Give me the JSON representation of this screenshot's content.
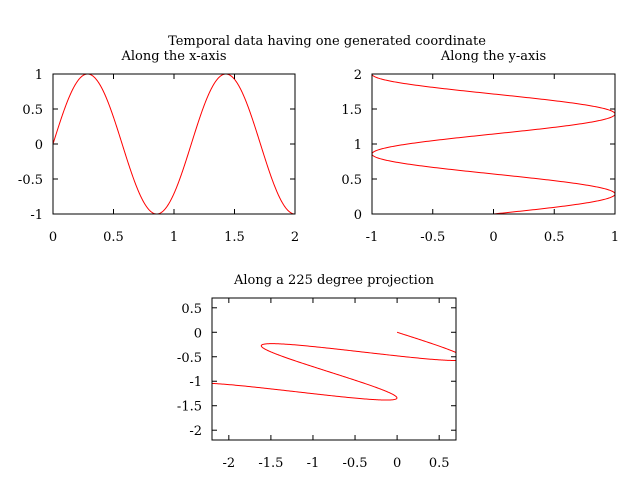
{
  "figure": {
    "title": "Temporal data having one generated coordinate"
  },
  "chart_data": [
    {
      "type": "line",
      "title": "Along the x-axis",
      "xlabel": "",
      "ylabel": "",
      "xlim": [
        0,
        2
      ],
      "ylim": [
        -1,
        1
      ],
      "xticks": [
        0,
        0.5,
        1,
        1.5,
        2
      ],
      "xtick_labels": [
        "0",
        "0.5",
        "1",
        "1.5",
        "2"
      ],
      "yticks": [
        -1,
        -0.5,
        0,
        0.5,
        1
      ],
      "ytick_labels": [
        "-1",
        "-0.5",
        "0",
        "0.5",
        "1"
      ],
      "grid": false,
      "series": [
        {
          "color": "#ff0000",
          "function": "y = sin(1.75*pi*t), x = t",
          "t_range": [
            0,
            2
          ]
        }
      ]
    },
    {
      "type": "line",
      "title": "Along the y-axis",
      "xlabel": "",
      "ylabel": "",
      "xlim": [
        -1,
        1
      ],
      "ylim": [
        0,
        2
      ],
      "xticks": [
        -1,
        -0.5,
        0,
        0.5,
        1
      ],
      "xtick_labels": [
        "-1",
        "-0.5",
        "0",
        "0.5",
        "1"
      ],
      "yticks": [
        0,
        0.5,
        1,
        1.5,
        2
      ],
      "ytick_labels": [
        "0",
        "0.5",
        "1",
        "1.5",
        "2"
      ],
      "grid": false,
      "series": [
        {
          "color": "#ff0000",
          "function": "x = sin(1.75*pi*t), y = t",
          "t_range": [
            0,
            2
          ]
        }
      ]
    },
    {
      "type": "line",
      "title": "Along a 225 degree projection",
      "xlabel": "",
      "ylabel": "",
      "xlim": [
        -2.2,
        0.7
      ],
      "ylim": [
        -2.2,
        0.7
      ],
      "xticks": [
        -2,
        -1.5,
        -1,
        -0.5,
        0,
        0.5
      ],
      "xtick_labels": [
        "-2",
        "-1.5",
        "-1",
        "-0.5",
        "0",
        "0.5"
      ],
      "yticks": [
        -2,
        -1.5,
        -1,
        -0.5,
        0,
        0.5
      ],
      "ytick_labels": [
        "-2",
        "-1.5",
        "-1",
        "-0.5",
        "0",
        "0.5"
      ],
      "grid": false,
      "series": [
        {
          "color": "#ff0000",
          "function": "x = sin(1.75*pi*t) - 0.7071*t, y = -0.7071*t - 0.35*sin(1.75*pi*t)",
          "t_range": [
            0,
            2
          ]
        }
      ]
    }
  ]
}
